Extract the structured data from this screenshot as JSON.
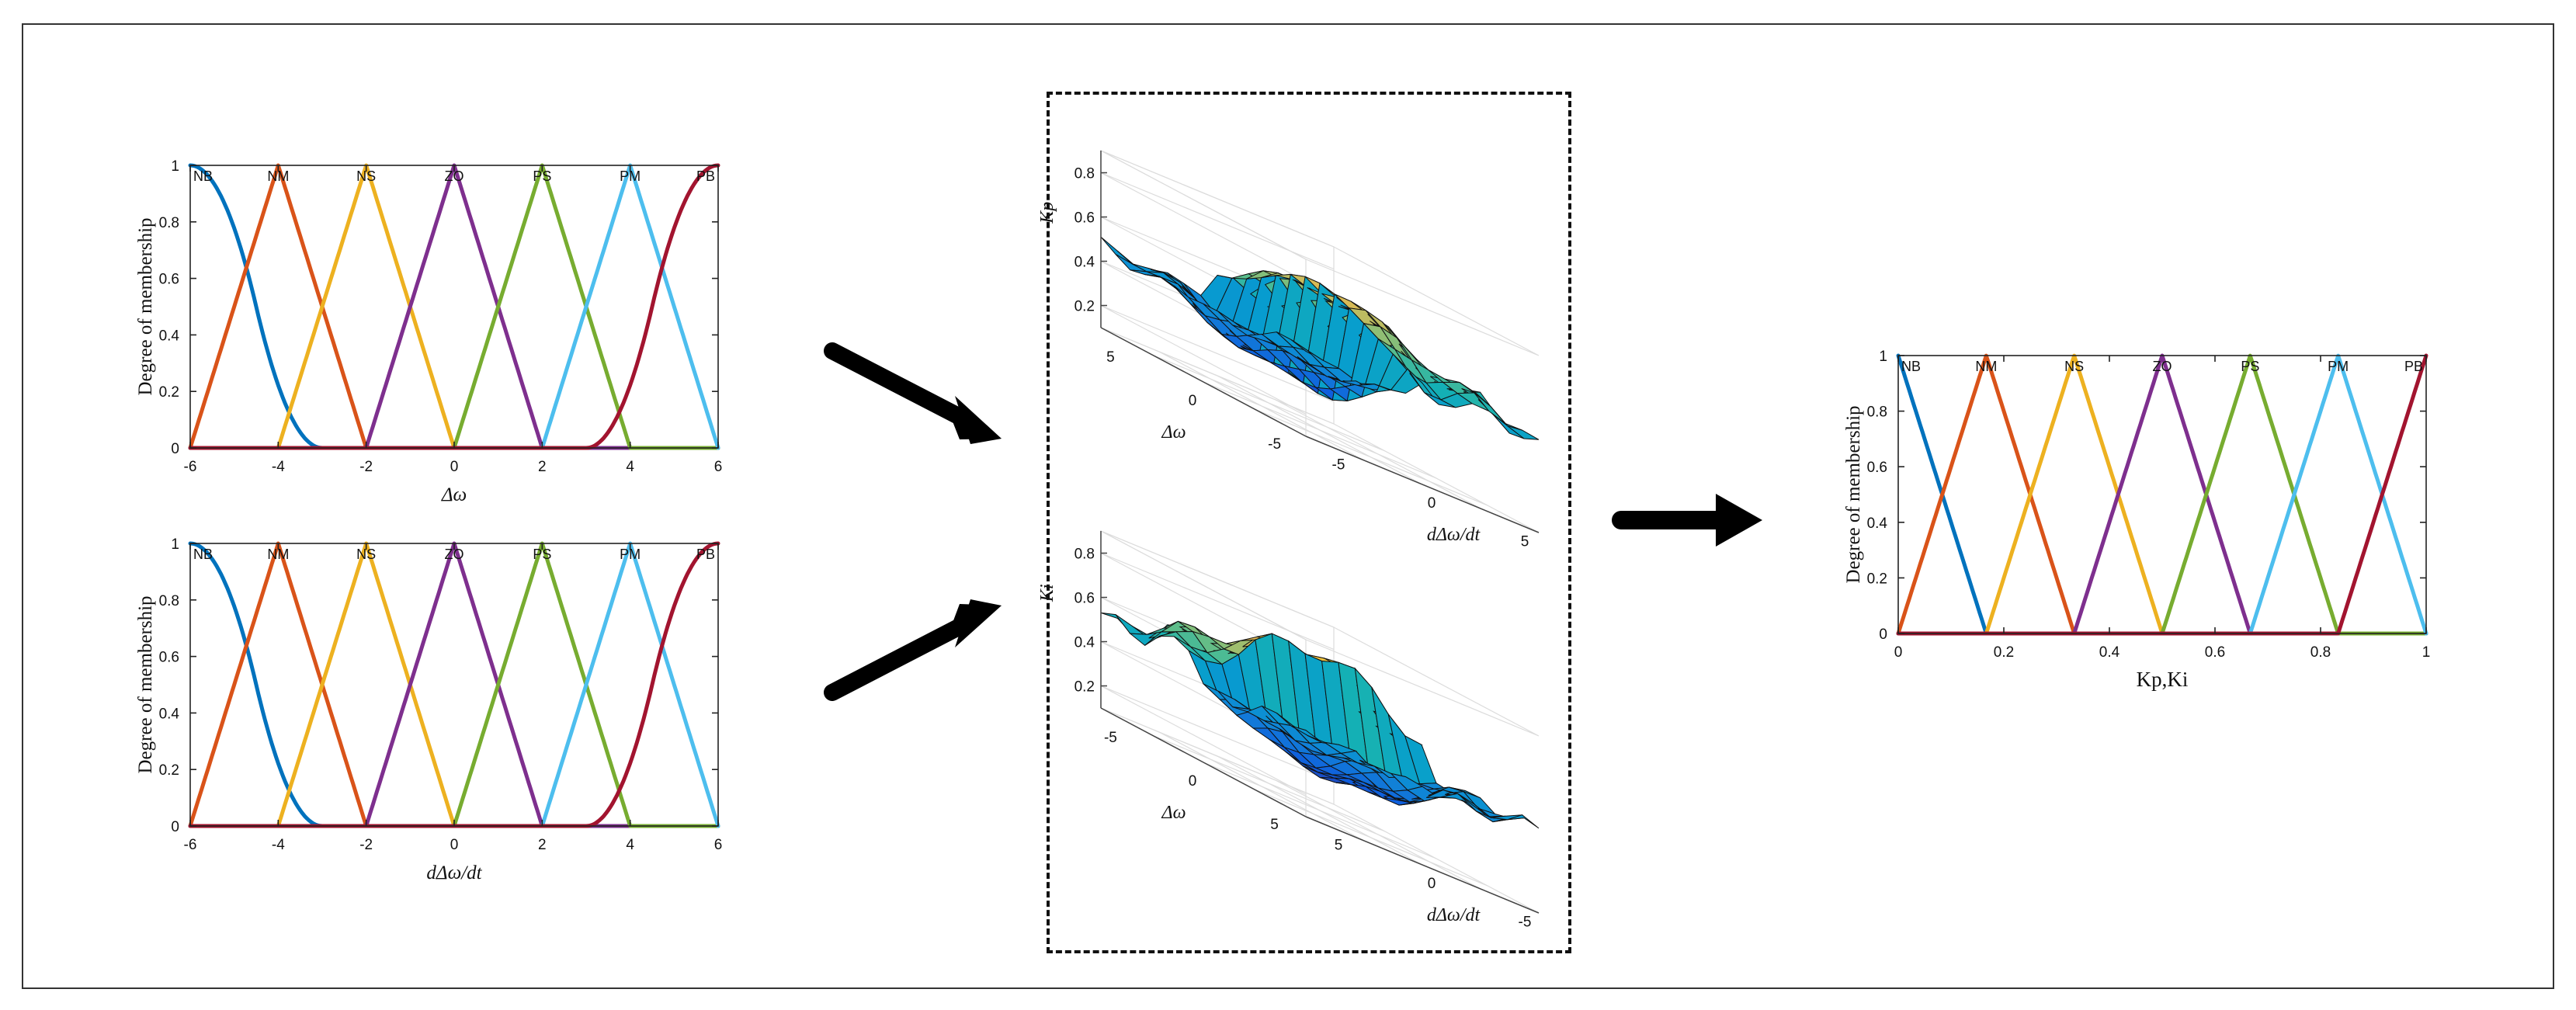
{
  "chart_data": [
    {
      "type": "line",
      "title": "",
      "xlabel": "Δω",
      "ylabel": "Degree of membership",
      "xlim": [
        -6,
        6
      ],
      "ylim": [
        0,
        1
      ],
      "xticks": [
        "-6",
        "-4",
        "-2",
        "0",
        "2",
        "4",
        "6"
      ],
      "yticks": [
        "0",
        "0.2",
        "0.4",
        "0.6",
        "0.8",
        "1"
      ],
      "series": [
        {
          "name": "NB",
          "shape": "zmf",
          "params": [
            -6,
            -3
          ],
          "color": "#0072BD"
        },
        {
          "name": "NM",
          "shape": "trimf",
          "params": [
            -6,
            -4,
            -2
          ],
          "color": "#D95319"
        },
        {
          "name": "NS",
          "shape": "trimf",
          "params": [
            -4,
            -2,
            0
          ],
          "color": "#EDB120"
        },
        {
          "name": "ZO",
          "shape": "trimf",
          "params": [
            -2,
            0,
            2
          ],
          "color": "#7E2F8E"
        },
        {
          "name": "PS",
          "shape": "trimf",
          "params": [
            0,
            2,
            4
          ],
          "color": "#77AC30"
        },
        {
          "name": "PM",
          "shape": "trimf",
          "params": [
            2,
            4,
            6
          ],
          "color": "#4DBEEE"
        },
        {
          "name": "PB",
          "shape": "smf",
          "params": [
            3,
            6
          ],
          "color": "#A2142F"
        }
      ]
    },
    {
      "type": "line",
      "title": "",
      "xlabel": "dΔω/dt",
      "ylabel": "Degree of membership",
      "xlim": [
        -6,
        6
      ],
      "ylim": [
        0,
        1
      ],
      "xticks": [
        "-6",
        "-4",
        "-2",
        "0",
        "2",
        "4",
        "6"
      ],
      "yticks": [
        "0",
        "0.2",
        "0.4",
        "0.6",
        "0.8",
        "1"
      ],
      "series": [
        {
          "name": "NB",
          "shape": "zmf",
          "params": [
            -6,
            -3
          ],
          "color": "#0072BD"
        },
        {
          "name": "NM",
          "shape": "trimf",
          "params": [
            -6,
            -4,
            -2
          ],
          "color": "#D95319"
        },
        {
          "name": "NS",
          "shape": "trimf",
          "params": [
            -4,
            -2,
            0
          ],
          "color": "#EDB120"
        },
        {
          "name": "ZO",
          "shape": "trimf",
          "params": [
            -2,
            0,
            2
          ],
          "color": "#7E2F8E"
        },
        {
          "name": "PS",
          "shape": "trimf",
          "params": [
            0,
            2,
            4
          ],
          "color": "#77AC30"
        },
        {
          "name": "PM",
          "shape": "trimf",
          "params": [
            2,
            4,
            6
          ],
          "color": "#4DBEEE"
        },
        {
          "name": "PB",
          "shape": "smf",
          "params": [
            3,
            6
          ],
          "color": "#A2142F"
        }
      ]
    },
    {
      "type": "surface",
      "zlabel": "Kp",
      "xlabel": "Δω",
      "ylabel": "dΔω/dt",
      "zticks": [
        "0.2",
        "0.4",
        "0.6",
        "0.8"
      ],
      "xticks": [
        "5",
        "0",
        "-5"
      ],
      "yticks": [
        "-5",
        "0",
        "5"
      ],
      "zlim": [
        0.1,
        0.9
      ],
      "colormap": "parula"
    },
    {
      "type": "surface",
      "zlabel": "Ki",
      "xlabel": "Δω",
      "ylabel": "dΔω/dt",
      "zticks": [
        "0.2",
        "0.4",
        "0.6",
        "0.8"
      ],
      "xticks": [
        "-5",
        "0",
        "5"
      ],
      "yticks": [
        "5",
        "0",
        "-5"
      ],
      "zlim": [
        0.1,
        0.9
      ],
      "colormap": "parula"
    },
    {
      "type": "line",
      "title": "",
      "xlabel": "Kp,Ki",
      "ylabel": "Degree of membership",
      "xlim": [
        0,
        1
      ],
      "ylim": [
        0,
        1
      ],
      "xticks": [
        "0",
        "0.2",
        "0.4",
        "0.6",
        "0.8",
        "1"
      ],
      "yticks": [
        "0",
        "0.2",
        "0.4",
        "0.6",
        "0.8",
        "1"
      ],
      "series": [
        {
          "name": "NB",
          "shape": "trimf",
          "params": [
            0,
            0,
            0.1667
          ],
          "color": "#0072BD"
        },
        {
          "name": "NM",
          "shape": "trimf",
          "params": [
            0,
            0.1667,
            0.3333
          ],
          "color": "#D95319"
        },
        {
          "name": "NS",
          "shape": "trimf",
          "params": [
            0.1667,
            0.3333,
            0.5
          ],
          "color": "#EDB120"
        },
        {
          "name": "ZO",
          "shape": "trimf",
          "params": [
            0.3333,
            0.5,
            0.6667
          ],
          "color": "#7E2F8E"
        },
        {
          "name": "PS",
          "shape": "trimf",
          "params": [
            0.5,
            0.6667,
            0.8333
          ],
          "color": "#77AC30"
        },
        {
          "name": "PM",
          "shape": "trimf",
          "params": [
            0.6667,
            0.8333,
            1
          ],
          "color": "#4DBEEE"
        },
        {
          "name": "PB",
          "shape": "trimf",
          "params": [
            0.8333,
            1,
            1
          ],
          "color": "#A2142F"
        }
      ]
    }
  ],
  "arrows": {
    "color": "#000000"
  }
}
